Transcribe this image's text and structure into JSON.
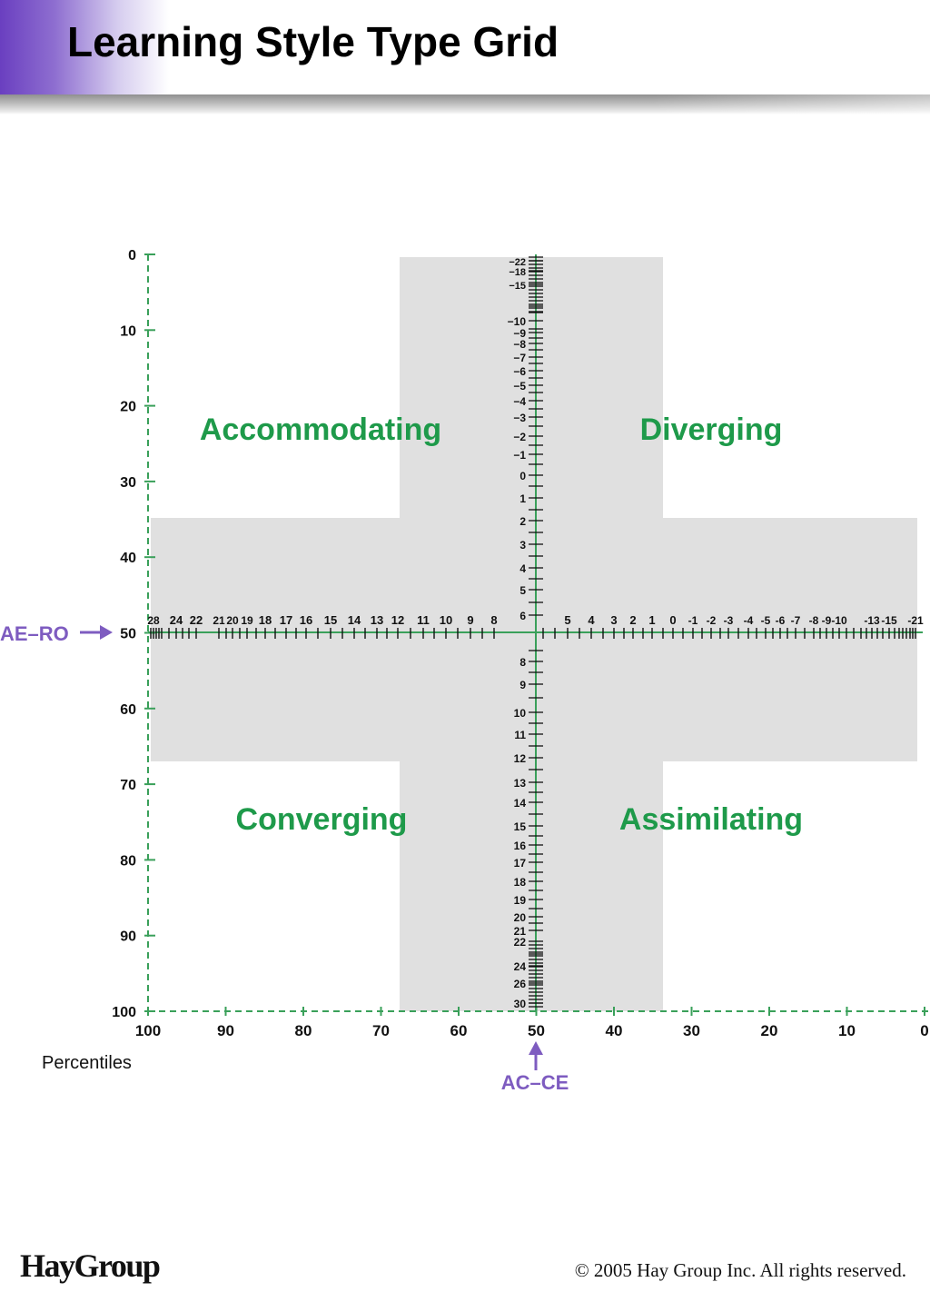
{
  "title": "Learning Style Type Grid",
  "footer": {
    "logo": "HayGroup",
    "copyright": "© 2005 Hay Group Inc. All rights reserved."
  },
  "colors": {
    "axis": "#3aa05a",
    "quadrant_label": "#1e9a4a",
    "band": "#e0e0e0",
    "arrow": "#7e5cc0",
    "text": "#111111"
  },
  "grid": {
    "quadrants": {
      "top_left": "Accommodating",
      "top_right": "Diverging",
      "bottom_left": "Converging",
      "bottom_right": "Assimilating"
    },
    "left_percentile_ticks": [
      "0",
      "10",
      "20",
      "30",
      "40",
      "50",
      "60",
      "70",
      "80",
      "90",
      "100"
    ],
    "bottom_percentile_ticks": [
      "100",
      "90",
      "80",
      "70",
      "60",
      "50",
      "40",
      "30",
      "20",
      "10",
      "0"
    ],
    "percentiles_label": "Percentiles",
    "horizontal_axis_label": "AE–RO",
    "vertical_axis_label": "AC–CE",
    "horizontal_scale_labels": [
      "28",
      "24",
      "22",
      "21",
      "20",
      "19",
      "18",
      "17",
      "16",
      "15",
      "14",
      "13",
      "12",
      "11",
      "10",
      "9",
      "8",
      "5",
      "4",
      "3",
      "2",
      "1",
      "0",
      "-1",
      "-2",
      "-3",
      "-4",
      "-5",
      "-6",
      "-7",
      "-8",
      "-9",
      "-10",
      "-13",
      "-15",
      "-21"
    ],
    "vertical_scale_labels": [
      "−22",
      "−18",
      "−15",
      "−10",
      "−9",
      "−8",
      "−7",
      "−6",
      "−5",
      "−4",
      "−3",
      "−2",
      "−1",
      "0",
      "1",
      "2",
      "3",
      "4",
      "5",
      "6",
      "8",
      "9",
      "10",
      "11",
      "12",
      "13",
      "14",
      "15",
      "16",
      "17",
      "18",
      "19",
      "20",
      "21",
      "22",
      "24",
      "26",
      "30"
    ]
  }
}
